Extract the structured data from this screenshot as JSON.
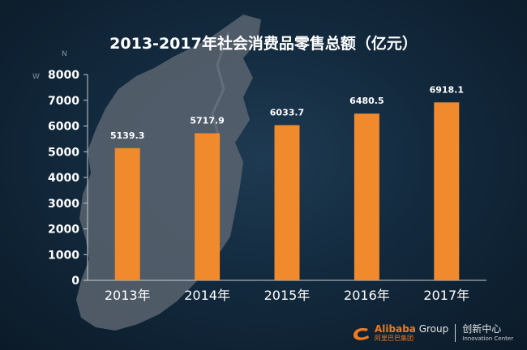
{
  "chart_data": {
    "type": "bar",
    "title": "2013-2017年社会消费品零售总额（亿元）",
    "categories": [
      "2013年",
      "2014年",
      "2015年",
      "2016年",
      "2017年"
    ],
    "values": [
      5139.3,
      5717.9,
      6033.7,
      6480.5,
      6918.1
    ],
    "value_labels": [
      "5139.3",
      "5717.9",
      "6033.7",
      "6480.5",
      "6918.1"
    ],
    "yticks": [
      0,
      1000,
      2000,
      3000,
      4000,
      5000,
      6000,
      7000,
      8000
    ],
    "ylim": [
      0,
      8000
    ],
    "grid": false,
    "bar_color": "#f08a2c"
  },
  "compass": {
    "north": "N",
    "west": "W"
  },
  "brand": {
    "name": "Alibaba",
    "group": " Group",
    "name_cn": "阿里巴巴集团",
    "unit_cn": "创新中心",
    "unit_en": "Innovation Center",
    "accent": "#f07a1e"
  }
}
